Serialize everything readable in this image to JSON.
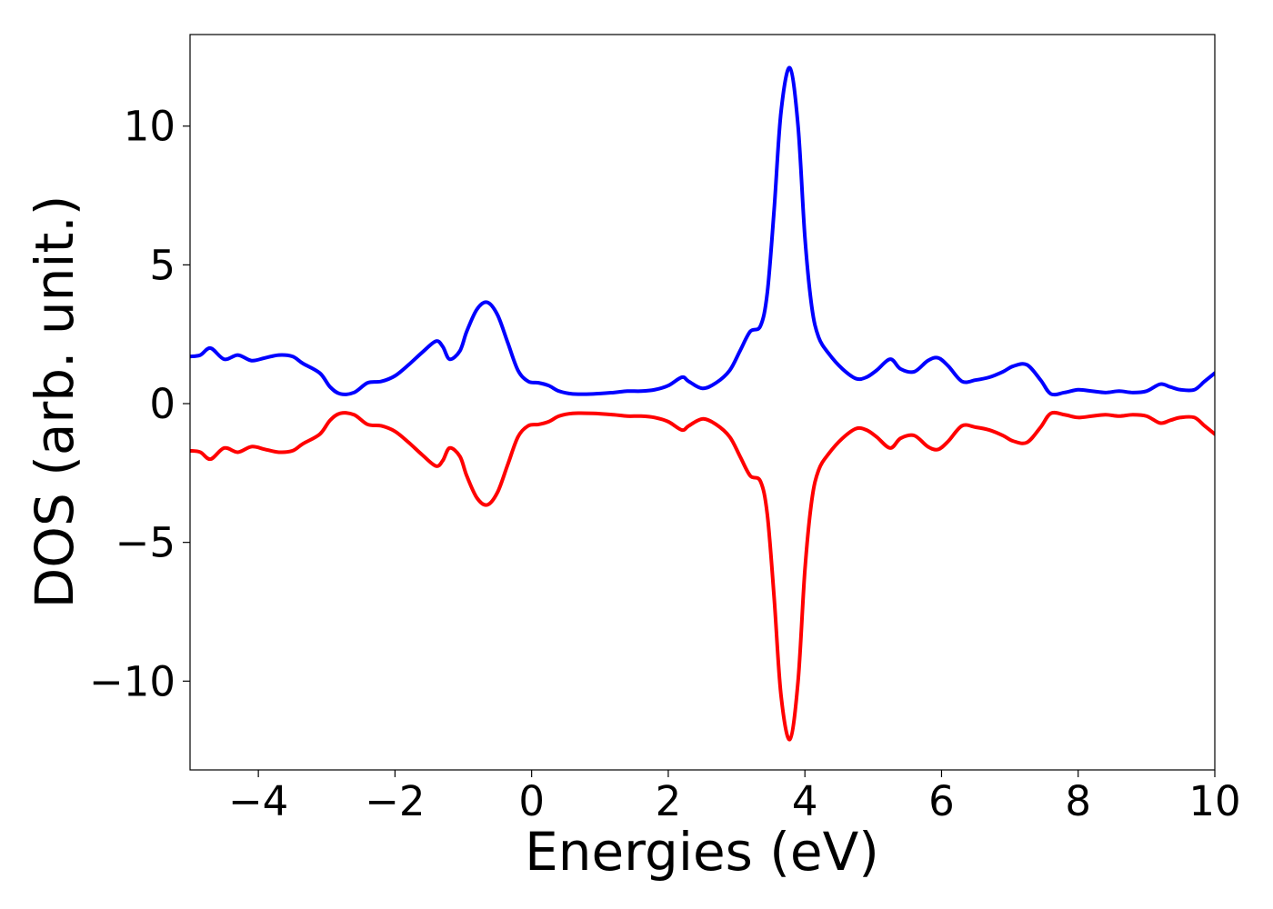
{
  "chart_data": {
    "type": "line",
    "title": "",
    "xlabel": "Energies (eV)",
    "ylabel": "DOS (arb. unit.)",
    "xlim": [
      -5,
      10
    ],
    "ylim": [
      -13.2,
      13.3
    ],
    "grid": false,
    "legend": "none",
    "xticks": [
      -4,
      -2,
      0,
      2,
      4,
      6,
      8,
      10
    ],
    "xtick_labels": [
      "−4",
      "−2",
      "0",
      "2",
      "4",
      "6",
      "8",
      "10"
    ],
    "yticks": [
      -10,
      -5,
      0,
      5,
      10
    ],
    "ytick_labels": [
      "−10",
      "−5",
      "0",
      "5",
      "10"
    ],
    "series": [
      {
        "color": "#0000ff",
        "x": [
          -5.0,
          -4.85,
          -4.7,
          -4.5,
          -4.3,
          -4.1,
          -3.9,
          -3.7,
          -3.5,
          -3.35,
          -3.1,
          -2.95,
          -2.8,
          -2.6,
          -2.4,
          -2.2,
          -2.0,
          -1.8,
          -1.6,
          -1.4,
          -1.3,
          -1.2,
          -1.05,
          -0.95,
          -0.8,
          -0.65,
          -0.5,
          -0.35,
          -0.2,
          -0.05,
          0.1,
          0.25,
          0.4,
          0.6,
          0.9,
          1.2,
          1.4,
          1.6,
          1.8,
          2.0,
          2.2,
          2.3,
          2.5,
          2.7,
          2.9,
          3.05,
          3.2,
          3.35,
          3.45,
          3.55,
          3.65,
          3.78,
          3.9,
          4.0,
          4.1,
          4.2,
          4.35,
          4.55,
          4.75,
          4.9,
          5.05,
          5.25,
          5.4,
          5.6,
          5.8,
          5.95,
          6.1,
          6.3,
          6.5,
          6.7,
          6.9,
          7.05,
          7.25,
          7.45,
          7.6,
          7.8,
          8.0,
          8.2,
          8.4,
          8.6,
          8.8,
          9.0,
          9.2,
          9.35,
          9.5,
          9.7,
          9.85,
          10.0
        ],
        "y": [
          1.7,
          1.75,
          2.0,
          1.6,
          1.75,
          1.55,
          1.65,
          1.75,
          1.7,
          1.45,
          1.1,
          0.6,
          0.35,
          0.4,
          0.75,
          0.8,
          1.0,
          1.4,
          1.85,
          2.25,
          2.05,
          1.6,
          1.9,
          2.6,
          3.4,
          3.65,
          3.2,
          2.2,
          1.2,
          0.8,
          0.75,
          0.65,
          0.45,
          0.35,
          0.35,
          0.4,
          0.45,
          0.45,
          0.5,
          0.65,
          0.95,
          0.8,
          0.55,
          0.75,
          1.2,
          1.9,
          2.6,
          2.8,
          4.0,
          7.0,
          10.5,
          12.1,
          10.0,
          6.0,
          3.5,
          2.4,
          1.8,
          1.25,
          0.9,
          0.95,
          1.2,
          1.6,
          1.25,
          1.15,
          1.55,
          1.65,
          1.35,
          0.8,
          0.85,
          0.95,
          1.15,
          1.35,
          1.4,
          0.85,
          0.35,
          0.4,
          0.5,
          0.45,
          0.4,
          0.45,
          0.4,
          0.45,
          0.7,
          0.6,
          0.5,
          0.5,
          0.8,
          1.1
        ]
      },
      {
        "color": "#ff0000",
        "x": [
          -5.0,
          -4.85,
          -4.7,
          -4.5,
          -4.3,
          -4.1,
          -3.9,
          -3.7,
          -3.5,
          -3.35,
          -3.1,
          -2.95,
          -2.8,
          -2.6,
          -2.4,
          -2.2,
          -2.0,
          -1.8,
          -1.6,
          -1.4,
          -1.3,
          -1.2,
          -1.05,
          -0.95,
          -0.8,
          -0.65,
          -0.5,
          -0.35,
          -0.2,
          -0.05,
          0.1,
          0.25,
          0.4,
          0.6,
          0.9,
          1.2,
          1.4,
          1.6,
          1.8,
          2.0,
          2.2,
          2.3,
          2.5,
          2.7,
          2.9,
          3.05,
          3.2,
          3.35,
          3.45,
          3.55,
          3.65,
          3.78,
          3.9,
          4.0,
          4.1,
          4.2,
          4.35,
          4.55,
          4.75,
          4.9,
          5.05,
          5.25,
          5.4,
          5.6,
          5.8,
          5.95,
          6.1,
          6.3,
          6.5,
          6.7,
          6.9,
          7.05,
          7.25,
          7.45,
          7.6,
          7.8,
          8.0,
          8.2,
          8.4,
          8.6,
          8.8,
          9.0,
          9.2,
          9.35,
          9.5,
          9.7,
          9.85,
          10.0
        ],
        "y": [
          -1.7,
          -1.75,
          -2.0,
          -1.6,
          -1.75,
          -1.55,
          -1.65,
          -1.75,
          -1.7,
          -1.45,
          -1.1,
          -0.6,
          -0.35,
          -0.4,
          -0.75,
          -0.8,
          -1.0,
          -1.4,
          -1.85,
          -2.25,
          -2.05,
          -1.6,
          -1.9,
          -2.6,
          -3.4,
          -3.65,
          -3.2,
          -2.2,
          -1.2,
          -0.8,
          -0.75,
          -0.65,
          -0.45,
          -0.35,
          -0.35,
          -0.4,
          -0.45,
          -0.45,
          -0.5,
          -0.65,
          -0.95,
          -0.8,
          -0.55,
          -0.75,
          -1.2,
          -1.9,
          -2.6,
          -2.8,
          -4.0,
          -7.0,
          -10.5,
          -12.1,
          -10.0,
          -6.0,
          -3.5,
          -2.4,
          -1.8,
          -1.25,
          -0.9,
          -0.95,
          -1.2,
          -1.6,
          -1.25,
          -1.15,
          -1.55,
          -1.65,
          -1.35,
          -0.8,
          -0.85,
          -0.95,
          -1.15,
          -1.35,
          -1.4,
          -0.85,
          -0.35,
          -0.4,
          -0.5,
          -0.45,
          -0.4,
          -0.45,
          -0.4,
          -0.45,
          -0.7,
          -0.6,
          -0.5,
          -0.5,
          -0.8,
          -1.1
        ]
      }
    ]
  }
}
